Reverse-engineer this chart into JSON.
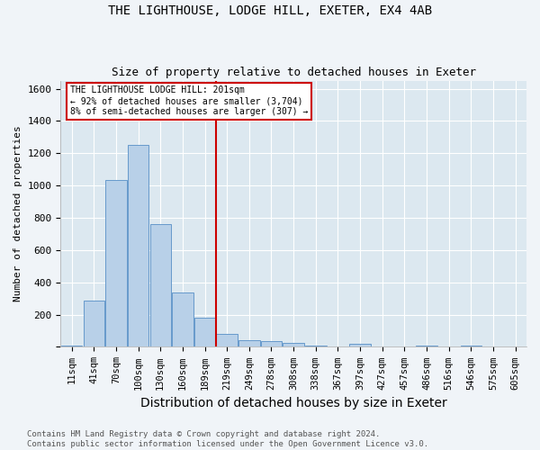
{
  "title": "THE LIGHTHOUSE, LODGE HILL, EXETER, EX4 4AB",
  "subtitle": "Size of property relative to detached houses in Exeter",
  "xlabel": "Distribution of detached houses by size in Exeter",
  "ylabel": "Number of detached properties",
  "footnote1": "Contains HM Land Registry data © Crown copyright and database right 2024.",
  "footnote2": "Contains public sector information licensed under the Open Government Licence v3.0.",
  "bin_labels": [
    "11sqm",
    "41sqm",
    "70sqm",
    "100sqm",
    "130sqm",
    "160sqm",
    "189sqm",
    "219sqm",
    "249sqm",
    "278sqm",
    "308sqm",
    "338sqm",
    "367sqm",
    "397sqm",
    "427sqm",
    "457sqm",
    "486sqm",
    "516sqm",
    "546sqm",
    "575sqm",
    "605sqm"
  ],
  "bar_heights": [
    10,
    285,
    1035,
    1250,
    760,
    335,
    180,
    80,
    42,
    37,
    26,
    10,
    0,
    18,
    0,
    0,
    10,
    0,
    10,
    0,
    0
  ],
  "bar_color": "#b8d0e8",
  "bar_edge_color": "#6699cc",
  "vline_position": 6.5,
  "annotation_text": "THE LIGHTHOUSE LODGE HILL: 201sqm\n← 92% of detached houses are smaller (3,704)\n8% of semi-detached houses are larger (307) →",
  "annotation_box_color": "#ffffff",
  "annotation_box_edge": "#cc0000",
  "vline_color": "#cc0000",
  "ylim": [
    0,
    1650
  ],
  "yticks": [
    0,
    200,
    400,
    600,
    800,
    1000,
    1200,
    1400,
    1600
  ],
  "background_color": "#f0f4f8",
  "plot_bg_color": "#dce8f0",
  "grid_color": "#ffffff",
  "title_fontsize": 10,
  "subtitle_fontsize": 9,
  "xlabel_fontsize": 10,
  "ylabel_fontsize": 8,
  "tick_fontsize": 7.5,
  "footnote_fontsize": 6.5
}
